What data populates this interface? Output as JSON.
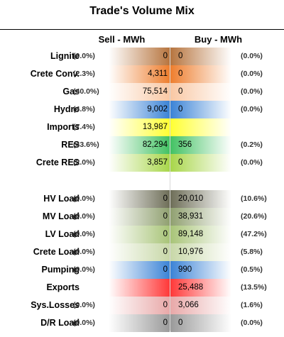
{
  "title": "Trade's Volume Mix",
  "headers": {
    "sell": "Sell - MWh",
    "buy": "Buy - MWh"
  },
  "chart_data": {
    "type": "table",
    "title": "Trade's Volume Mix",
    "columns": [
      "Sell - MWh",
      "Buy - MWh"
    ],
    "rows": [
      {
        "label": "Lignite",
        "sell_pct": "(0.0%)",
        "sell": "0",
        "buy": "0",
        "buy_pct": "(0.0%)",
        "color": "#b7753f"
      },
      {
        "label": "Crete Conv.",
        "sell_pct": "(2.3%)",
        "sell": "4,311",
        "buy": "0",
        "buy_pct": "(0.0%)",
        "color": "#ee7e2e"
      },
      {
        "label": "Gas",
        "sell_pct": "(40.0%)",
        "sell": "75,514",
        "buy": "0",
        "buy_pct": "(0.0%)",
        "color": "#f9c8a4"
      },
      {
        "label": "Hydro",
        "sell_pct": "(4.8%)",
        "sell": "9,002",
        "buy": "0",
        "buy_pct": "(0.0%)",
        "color": "#3b83d6"
      },
      {
        "label": "Imports",
        "sell_pct": "(7.4%)",
        "sell": "13,987",
        "buy": "",
        "buy_pct": "",
        "color": "#ffff33"
      },
      {
        "label": "RES",
        "sell_pct": "(43.6%)",
        "sell": "82,294",
        "buy": "356",
        "buy_pct": "(0.2%)",
        "color": "#43c263"
      },
      {
        "label": "Crete RES",
        "sell_pct": "(2.0%)",
        "sell": "3,857",
        "buy": "0",
        "buy_pct": "(0.0%)",
        "color": "#a8d64a"
      },
      {
        "label": "HV Load",
        "sell_pct": "(0.0%)",
        "sell": "0",
        "buy": "20,010",
        "buy_pct": "(10.6%)",
        "color": "#6e6e58"
      },
      {
        "label": "MV Load",
        "sell_pct": "(0.0%)",
        "sell": "0",
        "buy": "38,931",
        "buy_pct": "(20.6%)",
        "color": "#90a070"
      },
      {
        "label": "LV Load",
        "sell_pct": "(0.0%)",
        "sell": "0",
        "buy": "89,148",
        "buy_pct": "(47.2%)",
        "color": "#a8c478"
      },
      {
        "label": "Crete Load",
        "sell_pct": "(0.0%)",
        "sell": "0",
        "buy": "10,976",
        "buy_pct": "(5.8%)",
        "color": "#c8d8a8"
      },
      {
        "label": "Pumping",
        "sell_pct": "(0.0%)",
        "sell": "0",
        "buy": "990",
        "buy_pct": "(0.5%)",
        "color": "#3b83d6"
      },
      {
        "label": "Exports",
        "sell_pct": "",
        "sell": "",
        "buy": "25,488",
        "buy_pct": "(13.5%)",
        "color": "#ff3838"
      },
      {
        "label": "Sys.Losses",
        "sell_pct": "(0.0%)",
        "sell": "0",
        "buy": "3,066",
        "buy_pct": "(1.6%)",
        "color": "#e8a8a8"
      },
      {
        "label": "D/R Load",
        "sell_pct": "(0.0%)",
        "sell": "0",
        "buy": "0",
        "buy_pct": "(0.0%)",
        "color": "#9a9a9a"
      }
    ]
  }
}
